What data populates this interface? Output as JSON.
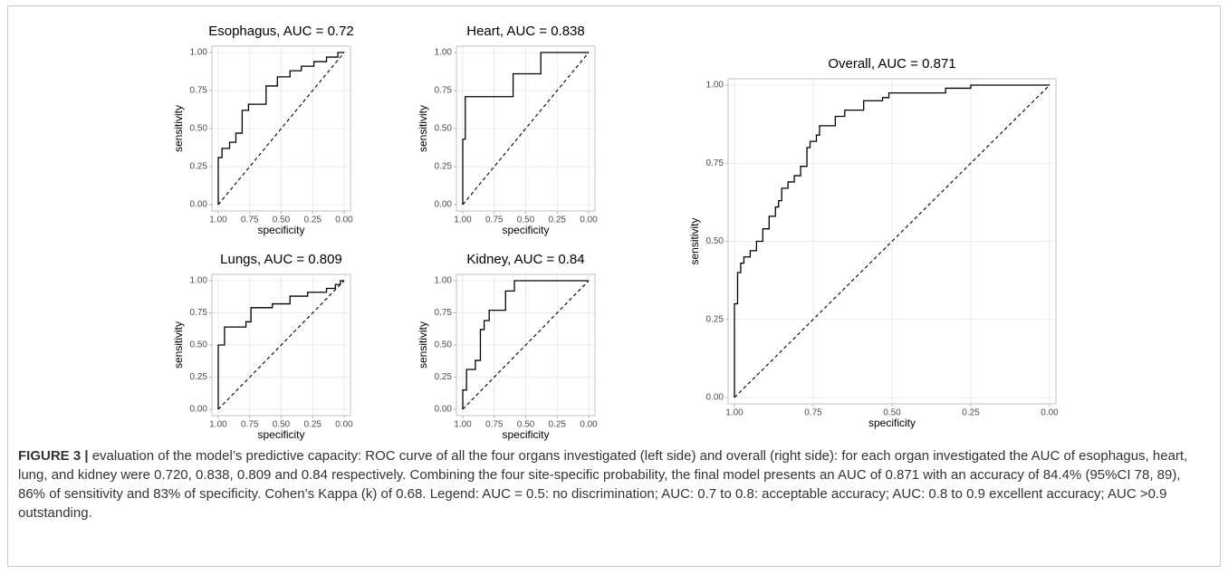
{
  "chart_data": [
    {
      "type": "line",
      "title": "Esophagus, AUC = 0.72",
      "xlabel": "specificity",
      "ylabel": "sensitivity",
      "x": [
        1,
        1,
        0.97,
        0.97,
        0.91,
        0.91,
        0.86,
        0.86,
        0.81,
        0.81,
        0.76,
        0.76,
        0.62,
        0.62,
        0.53,
        0.53,
        0.43,
        0.43,
        0.34,
        0.34,
        0.24,
        0.24,
        0.14,
        0.14,
        0.05,
        0.05,
        0
      ],
      "values": [
        0,
        0.31,
        0.31,
        0.37,
        0.37,
        0.41,
        0.41,
        0.47,
        0.47,
        0.62,
        0.62,
        0.66,
        0.66,
        0.78,
        0.78,
        0.84,
        0.84,
        0.88,
        0.88,
        0.91,
        0.91,
        0.94,
        0.94,
        0.97,
        0.97,
        1,
        1
      ],
      "color": "#000000",
      "reference_line": "dashed",
      "grid": true,
      "xlim": [
        1,
        0
      ],
      "ylim": [
        0,
        1
      ],
      "xticks": [
        {
          "value": 1,
          "label": "1.00"
        },
        {
          "value": 0.75,
          "label": "0.75"
        },
        {
          "value": 0.5,
          "label": "0.50"
        },
        {
          "value": 0.25,
          "label": "0.25"
        },
        {
          "value": 0,
          "label": "0.00"
        }
      ],
      "yticks": [
        {
          "value": 0,
          "label": "0.00"
        },
        {
          "value": 0.25,
          "label": "0.25"
        },
        {
          "value": 0.5,
          "label": "0.50"
        },
        {
          "value": 0.75,
          "label": "0.75"
        },
        {
          "value": 1,
          "label": "1.00"
        }
      ]
    },
    {
      "type": "line",
      "title": "Heart, AUC = 0.838",
      "xlabel": "specificity",
      "ylabel": "sensitivity",
      "x": [
        1,
        1,
        0.98,
        0.98,
        0.6,
        0.6,
        0.38,
        0.38,
        0
      ],
      "values": [
        0,
        0.43,
        0.43,
        0.71,
        0.71,
        0.86,
        0.86,
        1,
        1
      ],
      "color": "#000000",
      "reference_line": "dashed",
      "grid": true,
      "xlim": [
        1,
        0
      ],
      "ylim": [
        0,
        1
      ],
      "xticks": [
        {
          "value": 1,
          "label": "1.00"
        },
        {
          "value": 0.75,
          "label": "0.75"
        },
        {
          "value": 0.5,
          "label": "0.50"
        },
        {
          "value": 0.25,
          "label": "0.25"
        },
        {
          "value": 0,
          "label": "0.00"
        }
      ],
      "yticks": [
        {
          "value": 0,
          "label": "0.00"
        },
        {
          "value": 0.25,
          "label": "0.25"
        },
        {
          "value": 0.5,
          "label": "0.50"
        },
        {
          "value": 0.75,
          "label": "0.75"
        },
        {
          "value": 1,
          "label": "1.00"
        }
      ]
    },
    {
      "type": "line",
      "title": "Lungs, AUC = 0.809",
      "xlabel": "specificity",
      "ylabel": "sensitivity",
      "x": [
        1,
        1,
        0.95,
        0.95,
        0.78,
        0.78,
        0.74,
        0.74,
        0.57,
        0.57,
        0.43,
        0.43,
        0.29,
        0.29,
        0.14,
        0.14,
        0.07,
        0.07,
        0.03,
        0.03,
        0
      ],
      "values": [
        0,
        0.5,
        0.5,
        0.64,
        0.64,
        0.68,
        0.68,
        0.79,
        0.79,
        0.82,
        0.82,
        0.88,
        0.88,
        0.91,
        0.91,
        0.94,
        0.94,
        0.97,
        0.97,
        1,
        1
      ],
      "color": "#000000",
      "reference_line": "dashed",
      "grid": true,
      "xlim": [
        1,
        0
      ],
      "ylim": [
        0,
        1
      ],
      "xticks": [
        {
          "value": 1,
          "label": "1.00"
        },
        {
          "value": 0.75,
          "label": "0.75"
        },
        {
          "value": 0.5,
          "label": "0.50"
        },
        {
          "value": 0.25,
          "label": "0.25"
        },
        {
          "value": 0,
          "label": "0.00"
        }
      ],
      "yticks": [
        {
          "value": 0,
          "label": "0.00"
        },
        {
          "value": 0.25,
          "label": "0.25"
        },
        {
          "value": 0.5,
          "label": "0.50"
        },
        {
          "value": 0.75,
          "label": "0.75"
        },
        {
          "value": 1,
          "label": "1.00"
        }
      ]
    },
    {
      "type": "line",
      "title": "Kidney, AUC = 0.84",
      "xlabel": "specificity",
      "ylabel": "sensitivity",
      "x": [
        1,
        1,
        0.97,
        0.97,
        0.9,
        0.9,
        0.86,
        0.86,
        0.83,
        0.83,
        0.79,
        0.79,
        0.66,
        0.66,
        0.59,
        0.59,
        0
      ],
      "values": [
        0,
        0.15,
        0.15,
        0.31,
        0.31,
        0.38,
        0.38,
        0.62,
        0.62,
        0.69,
        0.69,
        0.77,
        0.77,
        0.92,
        0.92,
        1,
        1
      ],
      "color": "#000000",
      "reference_line": "dashed",
      "grid": true,
      "xlim": [
        1,
        0
      ],
      "ylim": [
        0,
        1
      ],
      "xticks": [
        {
          "value": 1,
          "label": "1.00"
        },
        {
          "value": 0.75,
          "label": "0.75"
        },
        {
          "value": 0.5,
          "label": "0.50"
        },
        {
          "value": 0.25,
          "label": "0.25"
        },
        {
          "value": 0,
          "label": "0.00"
        }
      ],
      "yticks": [
        {
          "value": 0,
          "label": "0.00"
        },
        {
          "value": 0.25,
          "label": "0.25"
        },
        {
          "value": 0.5,
          "label": "0.50"
        },
        {
          "value": 0.75,
          "label": "0.75"
        },
        {
          "value": 1,
          "label": "1.00"
        }
      ]
    },
    {
      "type": "line",
      "title": "Overall, AUC = 0.871",
      "xlabel": "specificity",
      "ylabel": "sensitivity",
      "x": [
        1,
        1,
        0.99,
        0.99,
        0.98,
        0.98,
        0.97,
        0.97,
        0.95,
        0.95,
        0.93,
        0.93,
        0.91,
        0.91,
        0.89,
        0.89,
        0.87,
        0.87,
        0.86,
        0.86,
        0.85,
        0.85,
        0.83,
        0.83,
        0.81,
        0.81,
        0.79,
        0.79,
        0.77,
        0.77,
        0.76,
        0.76,
        0.74,
        0.74,
        0.73,
        0.73,
        0.68,
        0.68,
        0.65,
        0.65,
        0.59,
        0.59,
        0.53,
        0.53,
        0.51,
        0.51,
        0.33,
        0.33,
        0.25,
        0.25,
        0
      ],
      "values": [
        0,
        0.3,
        0.3,
        0.4,
        0.4,
        0.43,
        0.43,
        0.45,
        0.45,
        0.47,
        0.47,
        0.5,
        0.5,
        0.54,
        0.54,
        0.58,
        0.58,
        0.61,
        0.61,
        0.63,
        0.63,
        0.67,
        0.67,
        0.69,
        0.69,
        0.71,
        0.71,
        0.74,
        0.74,
        0.8,
        0.8,
        0.82,
        0.82,
        0.84,
        0.84,
        0.87,
        0.87,
        0.9,
        0.9,
        0.92,
        0.92,
        0.95,
        0.95,
        0.96,
        0.96,
        0.975,
        0.975,
        0.99,
        0.99,
        1,
        1
      ],
      "color": "#000000",
      "reference_line": "dashed",
      "grid": true,
      "xlim": [
        1,
        0
      ],
      "ylim": [
        0,
        1
      ],
      "xticks": [
        {
          "value": 1,
          "label": "1.00"
        },
        {
          "value": 0.75,
          "label": "0.75"
        },
        {
          "value": 0.5,
          "label": "0.50"
        },
        {
          "value": 0.25,
          "label": "0.25"
        },
        {
          "value": 0,
          "label": "0.00"
        }
      ],
      "yticks": [
        {
          "value": 0,
          "label": "0.00"
        },
        {
          "value": 0.25,
          "label": "0.25"
        },
        {
          "value": 0.5,
          "label": "0.50"
        },
        {
          "value": 0.75,
          "label": "0.75"
        },
        {
          "value": 1,
          "label": "1.00"
        }
      ]
    }
  ],
  "caption": {
    "label": "FIGURE 3 |",
    "text": "evaluation of the model’s predictive capacity: ROC curve of all the four organs investigated (left side) and overall (right side): for each organ investigated the AUC of esophagus, heart, lung, and kidney were 0.720, 0.838, 0.809 and 0.84 respectively. Combining the four site-specific probability, the final model presents an AUC of 0.871 with an accuracy of 84.4% (95%CI 78, 89), 86% of sensitivity and 83% of specificity. Cohen’s Kappa (k) of 0.68. Legend: AUC = 0.5: no discrimination; AUC: 0.7 to 0.8: acceptable accuracy; AUC: 0.8 to 0.9 excellent accuracy; AUC >0.9 outstanding."
  }
}
